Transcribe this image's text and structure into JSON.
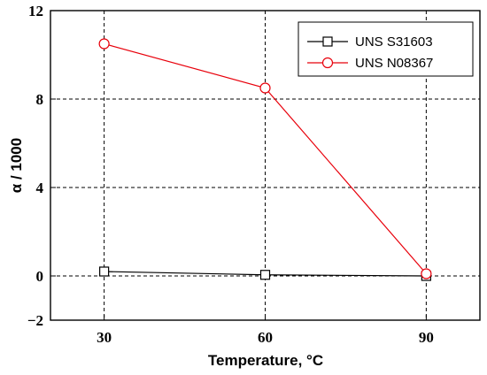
{
  "chart_data": {
    "type": "line",
    "xlabel": "Temperature, °C",
    "ylabel": "α / 1000",
    "x": [
      30,
      60,
      90
    ],
    "xlim": [
      20,
      100
    ],
    "ylim": [
      -2,
      12
    ],
    "xticks": [
      "30",
      "60",
      "90"
    ],
    "yticks": [
      "−2",
      "0",
      "4",
      "8",
      "12"
    ],
    "ytick_values": [
      -2,
      0,
      4,
      8,
      12
    ],
    "grid": true,
    "legend_position": "top-right",
    "series": [
      {
        "name": "UNS S31603",
        "values": [
          0.2,
          0.05,
          0.0
        ],
        "color": "#000000",
        "marker": "square"
      },
      {
        "name": "UNS N08367",
        "values": [
          10.5,
          8.5,
          0.1
        ],
        "color": "#e8000b",
        "marker": "circle"
      }
    ]
  }
}
